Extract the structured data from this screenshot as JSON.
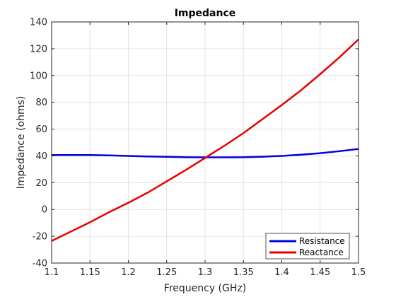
{
  "chart_data": {
    "type": "line",
    "title": "Impedance",
    "xlabel": "Frequency (GHz)",
    "ylabel": "Impedance (ohms)",
    "xlim": [
      1.1,
      1.5
    ],
    "ylim": [
      -40,
      140
    ],
    "xticks": [
      1.1,
      1.15,
      1.2,
      1.25,
      1.3,
      1.35,
      1.4,
      1.45,
      1.5
    ],
    "xtick_labels": [
      "1.1",
      "1.15",
      "1.2",
      "1.25",
      "1.3",
      "1.35",
      "1.4",
      "1.45",
      "1.5"
    ],
    "yticks": [
      -40,
      -20,
      0,
      20,
      40,
      60,
      80,
      100,
      120,
      140
    ],
    "ytick_labels": [
      "-40",
      "-20",
      "0",
      "20",
      "40",
      "60",
      "80",
      "100",
      "120",
      "140"
    ],
    "grid": true,
    "legend_position": "bottom-right",
    "x": [
      1.1,
      1.125,
      1.15,
      1.175,
      1.2,
      1.225,
      1.25,
      1.275,
      1.3,
      1.325,
      1.35,
      1.375,
      1.4,
      1.425,
      1.45,
      1.475,
      1.5
    ],
    "series": [
      {
        "name": "Resistance",
        "color": "#0000e6",
        "values": [
          40.6,
          40.6,
          40.6,
          40.4,
          40.0,
          39.6,
          39.3,
          39.0,
          38.9,
          38.9,
          39.0,
          39.4,
          40.0,
          40.9,
          42.0,
          43.5,
          45.2
        ]
      },
      {
        "name": "Reactance",
        "color": "#e60000",
        "values": [
          -23.5,
          -16.5,
          -9.5,
          -2.0,
          5.0,
          12.5,
          21.0,
          29.5,
          38.5,
          47.5,
          57.0,
          67.5,
          78.0,
          89.0,
          101.0,
          113.5,
          127.0
        ]
      }
    ]
  }
}
